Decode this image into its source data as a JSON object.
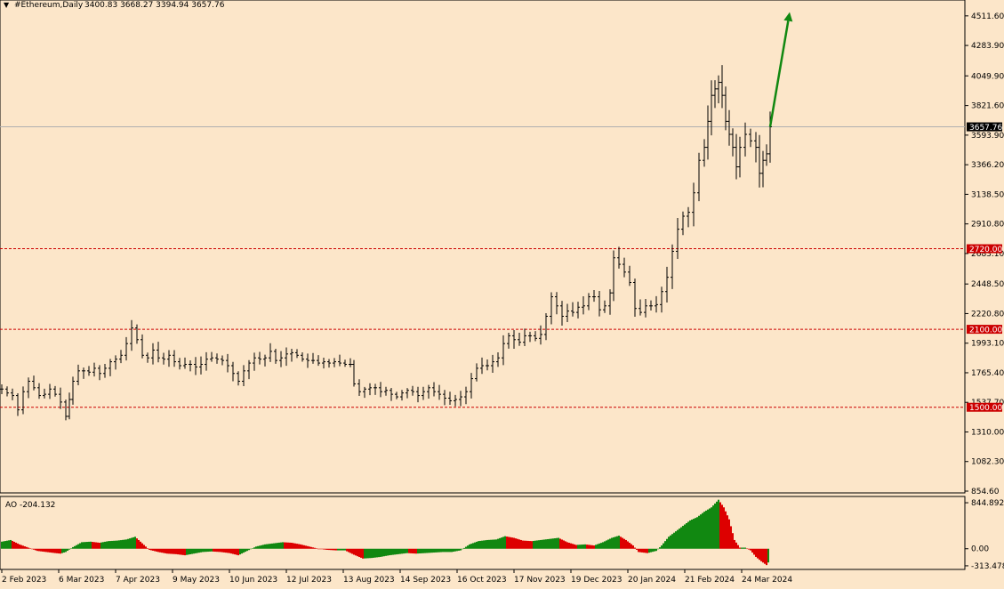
{
  "header": {
    "title_marker": "▼",
    "symbol": "#Ethereum,Daily",
    "ohlc": "3400.83 3668.27 3394.94 3657.76"
  },
  "chart_data": [
    {
      "type": "candlestick",
      "ylim": [
        854.6,
        4620
      ],
      "price_ticks": [
        "4511.60",
        "4283.90",
        "4049.90",
        "3821.60",
        "3593.90",
        "3366.20",
        "3138.50",
        "2910.80",
        "2683.10",
        "2448.50",
        "2220.80",
        "1993.10",
        "1765.40",
        "1537.70",
        "1310.00",
        "1082.30",
        "854.60"
      ],
      "current_price": "3657.76",
      "levels": [
        {
          "label": "2720.00",
          "value": 2720
        },
        {
          "label": "2100.00",
          "value": 2100
        },
        {
          "label": "1500.00",
          "value": 1500
        }
      ],
      "date_labels": [
        "2 Feb 2023",
        "6 Mar 2023",
        "7 Apr 2023",
        "9 May 2023",
        "10 Jun 2023",
        "12 Jul 2023",
        "13 Aug 2023",
        "14 Sep 2023",
        "16 Oct 2023",
        "17 Nov 2023",
        "19 Dec 2023",
        "20 Jan 2024",
        "21 Feb 2024",
        "24 Mar 2024"
      ],
      "closes": [
        [
          0,
          1640
        ],
        [
          6,
          1610
        ],
        [
          12,
          1590
        ],
        [
          18,
          1480
        ],
        [
          24,
          1620
        ],
        [
          30,
          1700
        ],
        [
          36,
          1650
        ],
        [
          42,
          1590
        ],
        [
          48,
          1600
        ],
        [
          54,
          1640
        ],
        [
          60,
          1600
        ],
        [
          66,
          1540
        ],
        [
          72,
          1430
        ],
        [
          76,
          1560
        ],
        [
          80,
          1700
        ],
        [
          86,
          1780
        ],
        [
          92,
          1780
        ],
        [
          98,
          1770
        ],
        [
          104,
          1800
        ],
        [
          110,
          1760
        ],
        [
          116,
          1800
        ],
        [
          122,
          1850
        ],
        [
          128,
          1870
        ],
        [
          134,
          1900
        ],
        [
          140,
          1990
        ],
        [
          146,
          2110
        ],
        [
          152,
          2020
        ],
        [
          158,
          1900
        ],
        [
          164,
          1880
        ],
        [
          170,
          1940
        ],
        [
          176,
          1880
        ],
        [
          182,
          1870
        ],
        [
          188,
          1900
        ],
        [
          194,
          1850
        ],
        [
          200,
          1820
        ],
        [
          206,
          1830
        ],
        [
          212,
          1830
        ],
        [
          218,
          1810
        ],
        [
          224,
          1830
        ],
        [
          230,
          1870
        ],
        [
          236,
          1880
        ],
        [
          242,
          1870
        ],
        [
          248,
          1860
        ],
        [
          254,
          1820
        ],
        [
          260,
          1760
        ],
        [
          266,
          1700
        ],
        [
          272,
          1780
        ],
        [
          278,
          1840
        ],
        [
          284,
          1880
        ],
        [
          290,
          1870
        ],
        [
          296,
          1880
        ],
        [
          302,
          1930
        ],
        [
          308,
          1860
        ],
        [
          314,
          1880
        ],
        [
          320,
          1910
        ],
        [
          326,
          1920
        ],
        [
          332,
          1900
        ],
        [
          338,
          1870
        ],
        [
          344,
          1860
        ],
        [
          350,
          1860
        ],
        [
          356,
          1840
        ],
        [
          362,
          1850
        ],
        [
          368,
          1840
        ],
        [
          374,
          1850
        ],
        [
          380,
          1840
        ],
        [
          386,
          1830
        ],
        [
          392,
          1830
        ],
        [
          396,
          1680
        ],
        [
          402,
          1620
        ],
        [
          408,
          1640
        ],
        [
          414,
          1650
        ],
        [
          420,
          1650
        ],
        [
          426,
          1620
        ],
        [
          432,
          1630
        ],
        [
          438,
          1600
        ],
        [
          444,
          1580
        ],
        [
          450,
          1610
        ],
        [
          456,
          1630
        ],
        [
          462,
          1620
        ],
        [
          468,
          1590
        ],
        [
          474,
          1620
        ],
        [
          480,
          1650
        ],
        [
          486,
          1620
        ],
        [
          492,
          1600
        ],
        [
          498,
          1570
        ],
        [
          504,
          1550
        ],
        [
          510,
          1560
        ],
        [
          516,
          1580
        ],
        [
          522,
          1620
        ],
        [
          528,
          1720
        ],
        [
          534,
          1800
        ],
        [
          540,
          1820
        ],
        [
          546,
          1820
        ],
        [
          552,
          1850
        ],
        [
          558,
          1880
        ],
        [
          564,
          1990
        ],
        [
          570,
          2050
        ],
        [
          576,
          2020
        ],
        [
          582,
          2000
        ],
        [
          588,
          2050
        ],
        [
          594,
          2050
        ],
        [
          600,
          2030
        ],
        [
          606,
          2060
        ],
        [
          612,
          2200
        ],
        [
          618,
          2350
        ],
        [
          624,
          2280
        ],
        [
          630,
          2200
        ],
        [
          636,
          2240
        ],
        [
          642,
          2230
        ],
        [
          648,
          2270
        ],
        [
          654,
          2280
        ],
        [
          660,
          2350
        ],
        [
          666,
          2350
        ],
        [
          672,
          2250
        ],
        [
          678,
          2280
        ],
        [
          684,
          2380
        ],
        [
          688,
          2650
        ],
        [
          694,
          2600
        ],
        [
          700,
          2540
        ],
        [
          706,
          2460
        ],
        [
          712,
          2260
        ],
        [
          718,
          2230
        ],
        [
          724,
          2280
        ],
        [
          730,
          2280
        ],
        [
          736,
          2290
        ],
        [
          742,
          2390
        ],
        [
          748,
          2500
        ],
        [
          754,
          2700
        ],
        [
          760,
          2870
        ],
        [
          766,
          2970
        ],
        [
          772,
          3000
        ],
        [
          778,
          3150
        ],
        [
          784,
          3400
        ],
        [
          790,
          3500
        ],
        [
          794,
          3700
        ],
        [
          798,
          3900
        ],
        [
          802,
          3950
        ],
        [
          806,
          4000
        ],
        [
          810,
          3900
        ],
        [
          814,
          3700
        ],
        [
          818,
          3600
        ],
        [
          822,
          3500
        ],
        [
          826,
          3350
        ],
        [
          830,
          3500
        ],
        [
          836,
          3600
        ],
        [
          842,
          3550
        ],
        [
          848,
          3500
        ],
        [
          852,
          3300
        ],
        [
          856,
          3400
        ],
        [
          860,
          3450
        ],
        [
          864,
          3657.76
        ]
      ],
      "projection_arrow": {
        "from_value": 3657.76,
        "to_value": 4540
      }
    },
    {
      "type": "histogram",
      "label": "AO -204.132",
      "ylim": [
        -380,
        960
      ],
      "ticks": [
        "844.892",
        "0.00",
        "-313.478"
      ],
      "values": [
        [
          0,
          130
        ],
        [
          10,
          160
        ],
        [
          20,
          80
        ],
        [
          30,
          20
        ],
        [
          40,
          -40
        ],
        [
          50,
          -60
        ],
        [
          60,
          -80
        ],
        [
          66,
          -90
        ],
        [
          72,
          -60
        ],
        [
          80,
          30
        ],
        [
          90,
          120
        ],
        [
          100,
          130
        ],
        [
          110,
          110
        ],
        [
          120,
          140
        ],
        [
          130,
          150
        ],
        [
          140,
          170
        ],
        [
          150,
          220
        ],
        [
          158,
          100
        ],
        [
          166,
          -20
        ],
        [
          176,
          -60
        ],
        [
          186,
          -90
        ],
        [
          196,
          -100
        ],
        [
          206,
          -120
        ],
        [
          216,
          -90
        ],
        [
          226,
          -60
        ],
        [
          236,
          -50
        ],
        [
          246,
          -60
        ],
        [
          256,
          -80
        ],
        [
          266,
          -120
        ],
        [
          276,
          -40
        ],
        [
          286,
          40
        ],
        [
          296,
          80
        ],
        [
          306,
          100
        ],
        [
          316,
          120
        ],
        [
          326,
          110
        ],
        [
          336,
          80
        ],
        [
          346,
          40
        ],
        [
          356,
          0
        ],
        [
          366,
          -20
        ],
        [
          376,
          -30
        ],
        [
          386,
          -30
        ],
        [
          396,
          -110
        ],
        [
          406,
          -180
        ],
        [
          416,
          -170
        ],
        [
          426,
          -150
        ],
        [
          436,
          -120
        ],
        [
          446,
          -100
        ],
        [
          456,
          -80
        ],
        [
          466,
          -90
        ],
        [
          476,
          -80
        ],
        [
          486,
          -70
        ],
        [
          496,
          -60
        ],
        [
          506,
          -60
        ],
        [
          516,
          -30
        ],
        [
          526,
          80
        ],
        [
          536,
          140
        ],
        [
          546,
          160
        ],
        [
          556,
          170
        ],
        [
          566,
          230
        ],
        [
          576,
          200
        ],
        [
          586,
          150
        ],
        [
          596,
          140
        ],
        [
          606,
          160
        ],
        [
          616,
          180
        ],
        [
          626,
          200
        ],
        [
          636,
          120
        ],
        [
          646,
          70
        ],
        [
          656,
          80
        ],
        [
          666,
          60
        ],
        [
          676,
          120
        ],
        [
          686,
          200
        ],
        [
          694,
          240
        ],
        [
          702,
          160
        ],
        [
          710,
          60
        ],
        [
          716,
          -60
        ],
        [
          726,
          -80
        ],
        [
          736,
          -40
        ],
        [
          742,
          60
        ],
        [
          750,
          220
        ],
        [
          758,
          320
        ],
        [
          766,
          420
        ],
        [
          774,
          520
        ],
        [
          782,
          580
        ],
        [
          790,
          680
        ],
        [
          798,
          760
        ],
        [
          806,
          900
        ],
        [
          812,
          760
        ],
        [
          818,
          540
        ],
        [
          824,
          160
        ],
        [
          830,
          20
        ],
        [
          836,
          20
        ],
        [
          842,
          -30
        ],
        [
          848,
          -150
        ],
        [
          854,
          -230
        ],
        [
          860,
          -300
        ],
        [
          864,
          -204.132
        ]
      ]
    }
  ],
  "colors": {
    "background": "#FCE6C9",
    "candle": "#000000",
    "level_line": "#CC0000",
    "level_label_bg": "#CC0000",
    "price_label_bg": "#000000",
    "arrow": "#118811",
    "ao_up": "#118811",
    "ao_down": "#DD0000"
  }
}
